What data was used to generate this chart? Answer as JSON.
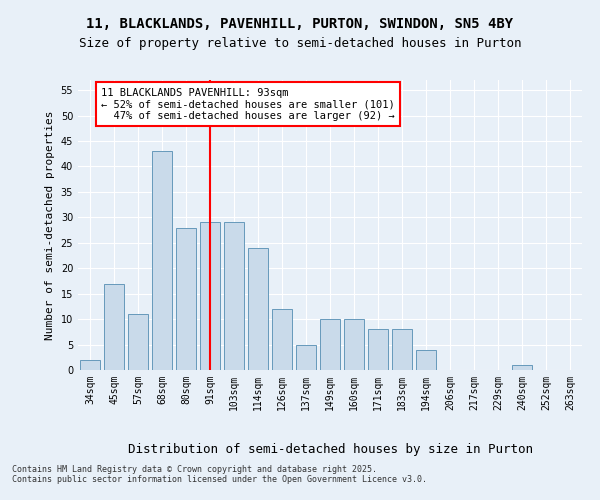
{
  "title_line1": "11, BLACKLANDS, PAVENHILL, PURTON, SWINDON, SN5 4BY",
  "title_line2": "Size of property relative to semi-detached houses in Purton",
  "xlabel": "Distribution of semi-detached houses by size in Purton",
  "ylabel": "Number of semi-detached properties",
  "categories": [
    "34sqm",
    "45sqm",
    "57sqm",
    "68sqm",
    "80sqm",
    "91sqm",
    "103sqm",
    "114sqm",
    "126sqm",
    "137sqm",
    "149sqm",
    "160sqm",
    "171sqm",
    "183sqm",
    "194sqm",
    "206sqm",
    "217sqm",
    "229sqm",
    "240sqm",
    "252sqm",
    "263sqm"
  ],
  "values": [
    2,
    17,
    11,
    43,
    28,
    29,
    29,
    24,
    12,
    5,
    10,
    10,
    8,
    8,
    4,
    0,
    0,
    0,
    1,
    0,
    0
  ],
  "bar_color": "#c9daea",
  "bar_edge_color": "#6699bb",
  "vline_x_index": 5,
  "vline_color": "red",
  "annotation_text": "11 BLACKLANDS PAVENHILL: 93sqm\n← 52% of semi-detached houses are smaller (101)\n  47% of semi-detached houses are larger (92) →",
  "annotation_box_color": "white",
  "annotation_box_edge": "red",
  "ylim": [
    0,
    57
  ],
  "yticks": [
    0,
    5,
    10,
    15,
    20,
    25,
    30,
    35,
    40,
    45,
    50,
    55
  ],
  "footer": "Contains HM Land Registry data © Crown copyright and database right 2025.\nContains public sector information licensed under the Open Government Licence v3.0.",
  "bg_color": "#e8f0f8",
  "title_fontsize": 10,
  "subtitle_fontsize": 9,
  "ylabel_fontsize": 8,
  "xlabel_fontsize": 9,
  "tick_fontsize": 7,
  "annotation_fontsize": 7.5,
  "footer_fontsize": 6
}
